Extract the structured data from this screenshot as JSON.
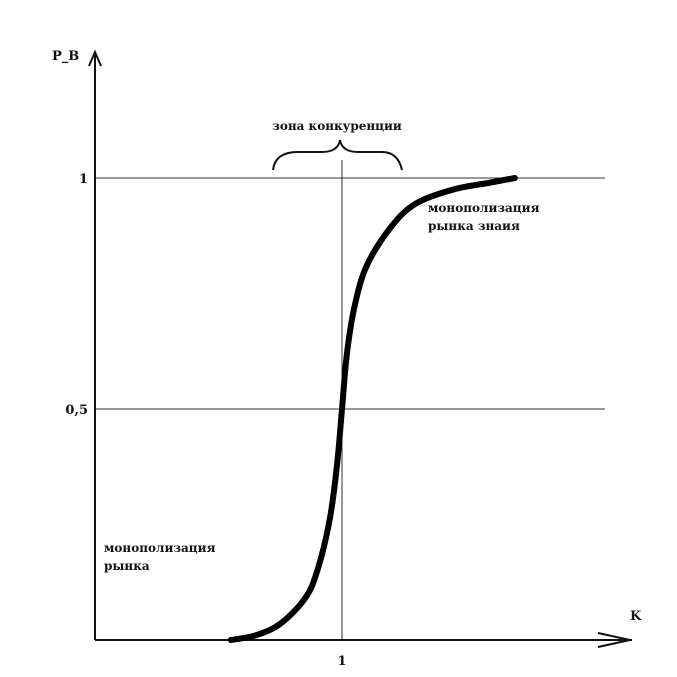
{
  "chart_data": {
    "type": "line",
    "title": "",
    "xlabel": "K",
    "ylabel": "P_B",
    "xlim": [
      0,
      2.2
    ],
    "ylim": [
      0,
      1.25
    ],
    "x_ticks": [
      {
        "value": 1,
        "label": "1"
      }
    ],
    "y_ticks": [
      {
        "value": 0.5,
        "label": "0,5"
      },
      {
        "value": 1,
        "label": "1"
      }
    ],
    "reference_lines": {
      "horizontal": [
        0.5,
        1
      ],
      "vertical": [
        1
      ]
    },
    "grid": false,
    "series": [
      {
        "points": [
          [
            0.55,
            0
          ],
          [
            0.65,
            0.01
          ],
          [
            0.75,
            0.035
          ],
          [
            0.85,
            0.09
          ],
          [
            0.9,
            0.15
          ],
          [
            0.95,
            0.26
          ],
          [
            0.98,
            0.38
          ],
          [
            1.0,
            0.5
          ],
          [
            1.02,
            0.62
          ],
          [
            1.05,
            0.72
          ],
          [
            1.1,
            0.81
          ],
          [
            1.2,
            0.895
          ],
          [
            1.3,
            0.945
          ],
          [
            1.45,
            0.975
          ],
          [
            1.6,
            0.99
          ],
          [
            1.7,
            1.0
          ]
        ]
      }
    ],
    "annotations": {
      "competition_zone": "зона конкуренции",
      "monopoly_upper": [
        "монополизация",
        "рынка знаия"
      ],
      "monopoly_lower": [
        "монополизация",
        "рынка"
      ]
    }
  }
}
